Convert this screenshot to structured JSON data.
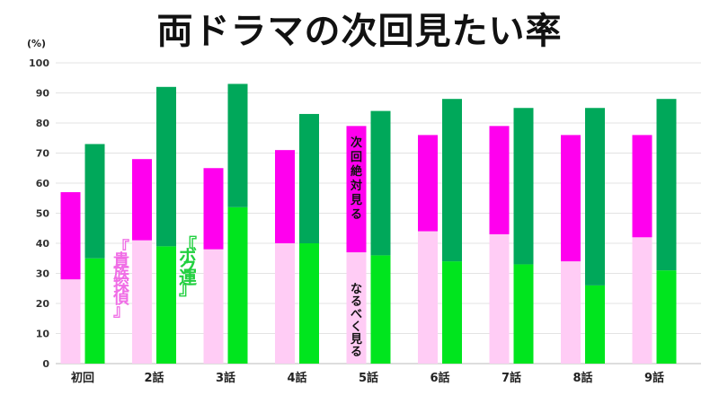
{
  "title": "両ドラマの次回見たい率",
  "unit_label": "(%)",
  "chart_data": {
    "type": "bar",
    "stacked": true,
    "categories": [
      "初回",
      "2話",
      "3話",
      "4話",
      "5話",
      "6話",
      "7話",
      "8話",
      "9話"
    ],
    "ylim": [
      0,
      100
    ],
    "yticks": [
      0,
      10,
      20,
      30,
      40,
      50,
      60,
      70,
      80,
      90,
      100
    ],
    "grid": true,
    "series": [
      {
        "name": "『貴族探偵』",
        "segments": [
          {
            "name": "なるべく見る",
            "values": [
              28,
              41,
              38,
              40,
              37,
              44,
              43,
              34,
              42
            ],
            "color": "#ffccf5"
          },
          {
            "name": "次回絶対見る",
            "values": [
              29,
              27,
              27,
              31,
              42,
              32,
              36,
              42,
              34
            ],
            "color": "#ff00ee"
          }
        ]
      },
      {
        "name": "『ボク運』",
        "segments": [
          {
            "name": "なるべく見る",
            "values": [
              35,
              39,
              52,
              40,
              36,
              34,
              33,
              26,
              31
            ],
            "color": "#00e51e"
          },
          {
            "name": "次回絶対見る",
            "values": [
              38,
              53,
              41,
              43,
              48,
              54,
              52,
              59,
              57
            ],
            "color": "#00a85a"
          }
        ]
      }
    ],
    "annotations": {
      "series_a_label": "『貴族探偵』",
      "series_b_label": "『ボク運』",
      "segment_top_label": "次回絶対見る",
      "segment_bottom_label": "なるべく見る",
      "series_a_color": "#f06ee6",
      "series_b_color": "#22d040"
    }
  }
}
